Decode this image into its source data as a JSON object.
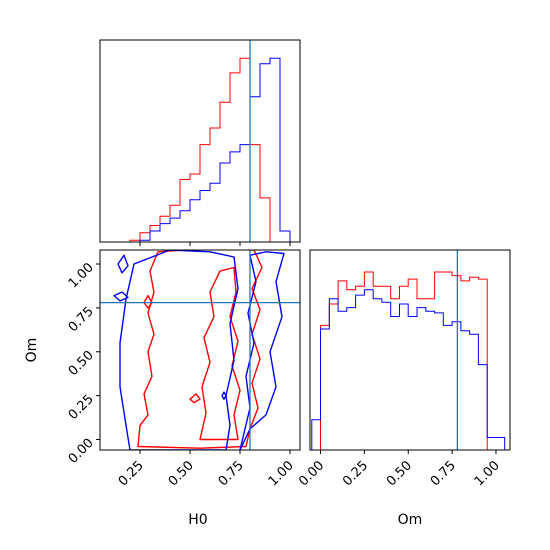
{
  "chart_data": {
    "type": "corner",
    "colors": {
      "run_a": "#ff0000",
      "run_b": "#0000ff",
      "truth": "#1f77b4"
    },
    "truth": {
      "H0": 0.8,
      "Om": 0.78
    },
    "x_tick_labels": [
      "0.25",
      "0.50",
      "0.75",
      "1.00"
    ],
    "om_tick_labels": [
      "0.00",
      "0.25",
      "0.50",
      "0.75",
      "1.00"
    ],
    "h0_tick_labels": [
      "0.25",
      "0.50",
      "0.75",
      "1.00"
    ],
    "xlabel_left": "H0",
    "xlabel_right": "Om",
    "ylabel_lower": "Om",
    "h0_range": [
      0.05,
      1.05
    ],
    "om_range": [
      -0.06,
      1.08
    ],
    "h0_hist": {
      "bin_edges": [
        0.2,
        0.25,
        0.3,
        0.35,
        0.4,
        0.45,
        0.5,
        0.55,
        0.6,
        0.65,
        0.7,
        0.75,
        0.8,
        0.85,
        0.9,
        0.95,
        1.0
      ],
      "series": [
        {
          "color": "red",
          "values": [
            0.01,
            0.05,
            0.09,
            0.14,
            0.2,
            0.34,
            0.37,
            0.53,
            0.62,
            0.76,
            0.92,
            1.0,
            0.53,
            0.24,
            0.0,
            0.0
          ]
        },
        {
          "color": "blue",
          "values": [
            0.0,
            0.01,
            0.06,
            0.1,
            0.13,
            0.17,
            0.23,
            0.28,
            0.32,
            0.43,
            0.49,
            0.53,
            0.79,
            0.97,
            1.0,
            0.06
          ]
        }
      ]
    },
    "om_hist": {
      "bin_edges": [
        -0.05,
        0.0,
        0.05,
        0.1,
        0.15,
        0.2,
        0.25,
        0.3,
        0.35,
        0.4,
        0.45,
        0.5,
        0.55,
        0.6,
        0.65,
        0.7,
        0.75,
        0.8,
        0.85,
        0.9,
        0.95,
        1.0,
        1.05
      ],
      "series": [
        {
          "color": "red",
          "values": [
            0.0,
            0.7,
            0.82,
            0.95,
            0.9,
            0.92,
            1.0,
            0.92,
            0.92,
            0.85,
            0.92,
            0.96,
            0.85,
            0.85,
            1.0,
            1.0,
            0.98,
            0.95,
            0.97,
            0.96,
            0.0,
            0.0
          ]
        },
        {
          "color": "blue",
          "values": [
            0.17,
            0.68,
            0.85,
            0.78,
            0.8,
            0.87,
            0.9,
            0.85,
            0.83,
            0.75,
            0.82,
            0.75,
            0.8,
            0.78,
            0.77,
            0.7,
            0.72,
            0.67,
            0.65,
            0.48,
            0.07,
            0.07
          ]
        }
      ]
    },
    "contours": [
      {
        "color": "red",
        "points": [
          [
            0.24,
            -0.04
          ],
          [
            0.25,
            0.08
          ],
          [
            0.29,
            0.14
          ],
          [
            0.27,
            0.26
          ],
          [
            0.31,
            0.36
          ],
          [
            0.29,
            0.5
          ],
          [
            0.32,
            0.6
          ],
          [
            0.29,
            0.72
          ],
          [
            0.32,
            0.84
          ],
          [
            0.3,
            0.96
          ],
          [
            0.34,
            1.07
          ],
          [
            0.6,
            1.09
          ],
          [
            0.82,
            1.08
          ],
          [
            0.86,
            0.98
          ],
          [
            0.81,
            0.86
          ],
          [
            0.85,
            0.74
          ],
          [
            0.81,
            0.6
          ],
          [
            0.85,
            0.46
          ],
          [
            0.81,
            0.32
          ],
          [
            0.84,
            0.18
          ],
          [
            0.8,
            0.06
          ],
          [
            0.78,
            -0.04
          ],
          [
            0.55,
            -0.05
          ],
          [
            0.24,
            -0.04
          ]
        ]
      },
      {
        "color": "red",
        "points": [
          [
            0.55,
            0.0
          ],
          [
            0.58,
            0.15
          ],
          [
            0.56,
            0.3
          ],
          [
            0.6,
            0.44
          ],
          [
            0.57,
            0.58
          ],
          [
            0.62,
            0.7
          ],
          [
            0.6,
            0.84
          ],
          [
            0.65,
            0.96
          ],
          [
            0.72,
            0.98
          ],
          [
            0.73,
            0.84
          ],
          [
            0.7,
            0.7
          ],
          [
            0.74,
            0.56
          ],
          [
            0.71,
            0.42
          ],
          [
            0.75,
            0.28
          ],
          [
            0.72,
            0.14
          ],
          [
            0.74,
            0.0
          ],
          [
            0.55,
            0.0
          ]
        ]
      },
      {
        "color": "red",
        "points": [
          [
            0.27,
            0.78
          ],
          [
            0.29,
            0.82
          ],
          [
            0.31,
            0.78
          ],
          [
            0.29,
            0.75
          ],
          [
            0.27,
            0.78
          ]
        ]
      },
      {
        "color": "red",
        "points": [
          [
            0.5,
            0.23
          ],
          [
            0.53,
            0.26
          ],
          [
            0.55,
            0.23
          ],
          [
            0.52,
            0.21
          ],
          [
            0.5,
            0.23
          ]
        ]
      },
      {
        "color": "blue",
        "points": [
          [
            0.2,
            -0.06
          ],
          [
            0.18,
            0.08
          ],
          [
            0.15,
            0.3
          ],
          [
            0.15,
            0.55
          ],
          [
            0.18,
            0.8
          ],
          [
            0.22,
            1.0
          ],
          [
            0.4,
            1.08
          ],
          [
            0.6,
            1.07
          ],
          [
            0.72,
            1.04
          ],
          [
            0.74,
            0.86
          ],
          [
            0.7,
            0.66
          ],
          [
            0.72,
            0.45
          ],
          [
            0.68,
            0.25
          ],
          [
            0.7,
            0.08
          ],
          [
            0.68,
            -0.06
          ],
          [
            0.2,
            -0.06
          ]
        ]
      },
      {
        "color": "blue",
        "points": [
          [
            0.75,
            -0.06
          ],
          [
            0.8,
            0.06
          ],
          [
            0.88,
            0.14
          ],
          [
            0.93,
            0.3
          ],
          [
            0.9,
            0.5
          ],
          [
            0.96,
            0.7
          ],
          [
            0.93,
            0.9
          ],
          [
            0.97,
            1.06
          ],
          [
            0.88,
            1.07
          ],
          [
            0.8,
            1.05
          ],
          [
            0.83,
            0.9
          ],
          [
            0.79,
            0.72
          ],
          [
            0.82,
            0.55
          ],
          [
            0.78,
            0.36
          ],
          [
            0.8,
            0.18
          ],
          [
            0.75,
            -0.06
          ]
        ]
      },
      {
        "color": "blue",
        "points": [
          [
            0.14,
            1.0
          ],
          [
            0.17,
            1.05
          ],
          [
            0.19,
            0.99
          ],
          [
            0.16,
            0.95
          ],
          [
            0.14,
            1.0
          ]
        ]
      },
      {
        "color": "blue",
        "points": [
          [
            0.12,
            0.82
          ],
          [
            0.16,
            0.84
          ],
          [
            0.19,
            0.81
          ],
          [
            0.15,
            0.79
          ],
          [
            0.12,
            0.82
          ]
        ]
      },
      {
        "color": "blue",
        "points": [
          [
            0.66,
            0.25
          ],
          [
            0.67,
            0.27
          ],
          [
            0.68,
            0.25
          ],
          [
            0.67,
            0.23
          ],
          [
            0.66,
            0.25
          ]
        ]
      }
    ]
  }
}
